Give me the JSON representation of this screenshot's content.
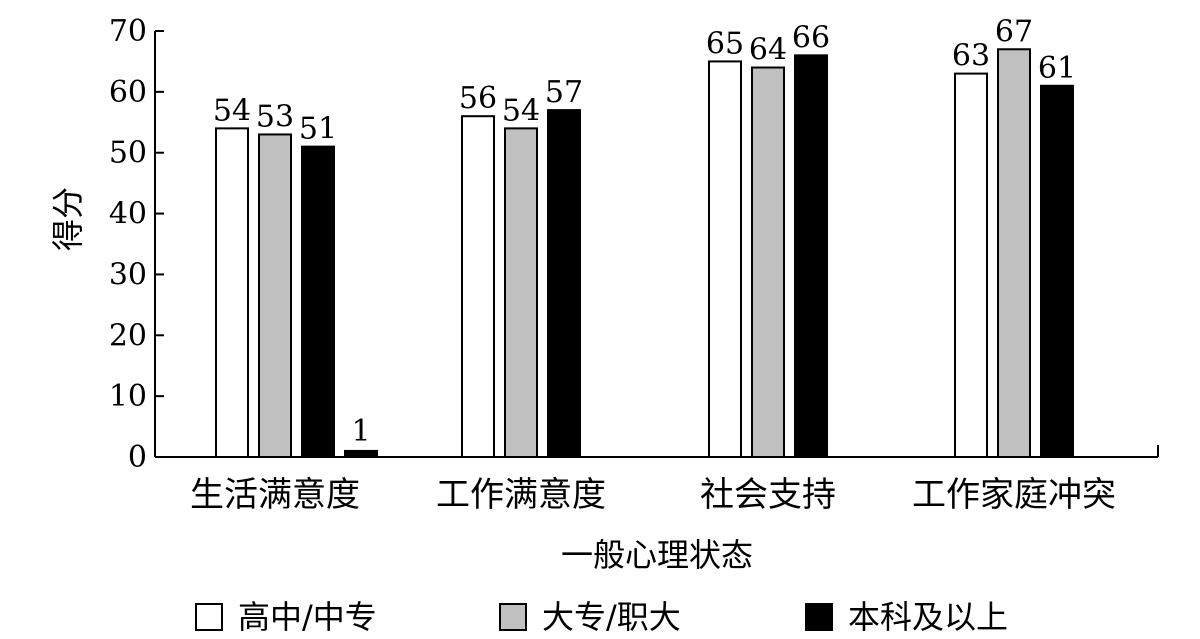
{
  "chart_data": {
    "type": "bar",
    "xlabel": "一般心理状态",
    "ylabel": "得分",
    "ylim": [
      0,
      70
    ],
    "yticks": [
      0,
      10,
      20,
      30,
      40,
      50,
      60,
      70
    ],
    "categories": [
      "生活满意度",
      "工作满意度",
      "社会支持",
      "工作家庭冲突"
    ],
    "series": [
      {
        "name": "高中/中专",
        "color": "#ffffff",
        "values": [
          54,
          56,
          65,
          63
        ]
      },
      {
        "name": "大专/职大",
        "color": "#c0c0c0",
        "values": [
          53,
          54,
          64,
          67
        ]
      },
      {
        "name": "本科及以上",
        "color": "#000000",
        "values": [
          51,
          57,
          66,
          61
        ]
      }
    ],
    "extra_bar": {
      "category_index": 0,
      "label": "1",
      "value": 1,
      "color": "#000000"
    },
    "legend": {
      "position": "bottom"
    },
    "grid": false
  }
}
